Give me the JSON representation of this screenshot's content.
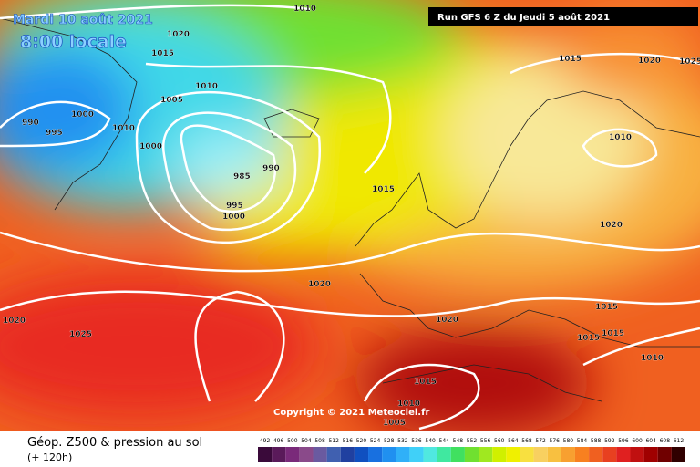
{
  "header": {
    "date": "Mardi 10 août 2021",
    "time": "8:00 locale",
    "run": "Run GFS 6 Z du Jeudi 5 août 2021"
  },
  "copyright": "Copyright © 2021 Meteociel.fr",
  "footer": {
    "title": "Géop. Z500 & pression au sol",
    "lead": "(+ 120h)"
  },
  "isobar_labels": [
    "1010",
    "1020",
    "1015",
    "1010",
    "1005",
    "1000",
    "990",
    "995",
    "1010",
    "1000",
    "990",
    "985",
    "995",
    "1000",
    "1015",
    "1015",
    "1020",
    "1025",
    "1010",
    "1020",
    "1020",
    "1020",
    "1020",
    "1025",
    "1015",
    "1015",
    "1015",
    "1010",
    "1015",
    "1010",
    "1005"
  ],
  "scale": {
    "values": [
      492,
      496,
      500,
      504,
      508,
      512,
      516,
      520,
      524,
      528,
      532,
      536,
      540,
      544,
      548,
      552,
      556,
      560,
      564,
      568,
      572,
      576,
      580,
      584,
      588,
      592,
      596,
      600,
      604,
      608,
      612
    ],
    "colors": [
      "#3a0a3a",
      "#5a1a5a",
      "#7a2a7a",
      "#8a4a8a",
      "#6a5aa0",
      "#4060b0",
      "#2040a0",
      "#1050c0",
      "#1870e0",
      "#2090f0",
      "#30b0f8",
      "#40d0f8",
      "#50e8e0",
      "#40e8a0",
      "#40e060",
      "#70e030",
      "#a0e820",
      "#d0f000",
      "#f0f000",
      "#f8e040",
      "#f8d060",
      "#f8c040",
      "#f8a030",
      "#f88020",
      "#f06020",
      "#e84020",
      "#e02020",
      "#c01010",
      "#a00000",
      "#700000",
      "#300000"
    ]
  }
}
